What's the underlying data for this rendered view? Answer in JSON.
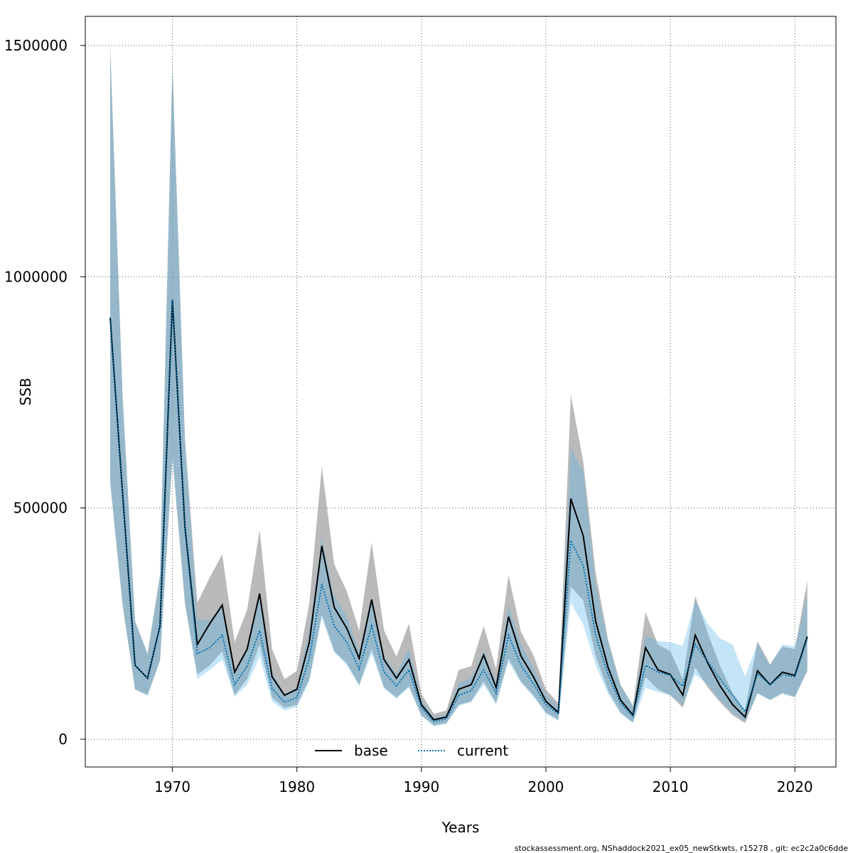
{
  "chart_data": {
    "type": "line",
    "xlabel": "Years",
    "ylabel": "SSB",
    "xlim": [
      1963,
      2023.3
    ],
    "ylim": [
      -60000,
      1563000
    ],
    "x_ticks": [
      1970,
      1980,
      1990,
      2000,
      2010,
      2020
    ],
    "y_ticks": [
      0,
      500000,
      1000000,
      1500000
    ],
    "x_tick_labels": [
      "1970",
      "1980",
      "1990",
      "2000",
      "2010",
      "2020"
    ],
    "y_tick_labels": [
      "0",
      "500000",
      "1000000",
      "1500000"
    ],
    "grid": true,
    "legend_placement": "bottom-center",
    "series": [
      {
        "name": "base",
        "color": "#000000",
        "line_style": "solid",
        "band_color": "#8c8c8c",
        "x": [
          1965,
          1966,
          1967,
          1968,
          1969,
          1970,
          1971,
          1972,
          1973,
          1974,
          1975,
          1976,
          1977,
          1978,
          1979,
          1980,
          1981,
          1982,
          1983,
          1984,
          1985,
          1986,
          1987,
          1988,
          1989,
          1990,
          1991,
          1992,
          1993,
          1994,
          1995,
          1996,
          1997,
          1998,
          1999,
          2000,
          2001,
          2002,
          2003,
          2004,
          2005,
          2006,
          2007,
          2008,
          2009,
          2010,
          2011,
          2012,
          2013,
          2014,
          2015,
          2016,
          2017,
          2018,
          2019,
          2020,
          2021
        ],
        "values": [
          912000,
          530000,
          160000,
          132000,
          245000,
          950000,
          460000,
          205000,
          250000,
          290000,
          145000,
          195000,
          315000,
          135000,
          95000,
          108000,
          210000,
          418000,
          285000,
          240000,
          175000,
          302000,
          172000,
          132000,
          172000,
          75000,
          42000,
          48000,
          108000,
          118000,
          182000,
          112000,
          265000,
          180000,
          135000,
          82000,
          58000,
          520000,
          440000,
          255000,
          155000,
          85000,
          52000,
          198000,
          150000,
          140000,
          95000,
          225000,
          165000,
          115000,
          75000,
          48000,
          148000,
          118000,
          145000,
          138000,
          222000
        ],
        "lower": [
          555000,
          290000,
          108000,
          95000,
          170000,
          610000,
          295000,
          140000,
          160000,
          190000,
          95000,
          130000,
          205000,
          90000,
          68000,
          75000,
          130000,
          270000,
          190000,
          165000,
          118000,
          195000,
          112000,
          90000,
          115000,
          52000,
          30000,
          35000,
          75000,
          82000,
          125000,
          78000,
          175000,
          125000,
          95000,
          58000,
          42000,
          330000,
          300000,
          180000,
          105000,
          58000,
          36000,
          135000,
          108000,
          95000,
          68000,
          155000,
          112000,
          80000,
          52000,
          35000,
          100000,
          85000,
          100000,
          92000,
          148000
        ],
        "upper": [
          1498000,
          740000,
          255000,
          185000,
          355000,
          1457000,
          650000,
          295000,
          350000,
          400000,
          210000,
          280000,
          452000,
          195000,
          130000,
          148000,
          295000,
          590000,
          378000,
          320000,
          235000,
          425000,
          235000,
          178000,
          250000,
          98000,
          55000,
          62000,
          150000,
          158000,
          245000,
          152000,
          355000,
          232000,
          182000,
          108000,
          78000,
          745000,
          600000,
          360000,
          215000,
          118000,
          72000,
          275000,
          205000,
          190000,
          130000,
          310000,
          230000,
          158000,
          100000,
          62000,
          212000,
          162000,
          200000,
          195000,
          342000
        ]
      },
      {
        "name": "current",
        "color": "#0072b2",
        "line_style": "dotted",
        "band_color": "#56b4e9",
        "x": [
          1965,
          1966,
          1967,
          1968,
          1969,
          1970,
          1971,
          1972,
          1973,
          1974,
          1975,
          1976,
          1977,
          1978,
          1979,
          1980,
          1981,
          1982,
          1983,
          1984,
          1985,
          1986,
          1987,
          1988,
          1989,
          1990,
          1991,
          1992,
          1993,
          1994,
          1995,
          1996,
          1997,
          1998,
          1999,
          2000,
          2001,
          2002,
          2003,
          2004,
          2005,
          2006,
          2007,
          2008,
          2009,
          2010,
          2011,
          2012,
          2013,
          2014,
          2015,
          2016,
          2017,
          2018,
          2019,
          2020,
          2021
        ],
        "values": [
          912000,
          530000,
          160000,
          132000,
          245000,
          950000,
          460000,
          185000,
          198000,
          225000,
          118000,
          158000,
          235000,
          110000,
          80000,
          90000,
          175000,
          335000,
          245000,
          210000,
          152000,
          245000,
          145000,
          115000,
          150000,
          68000,
          38000,
          44000,
          95000,
          105000,
          150000,
          100000,
          225000,
          160000,
          120000,
          75000,
          55000,
          430000,
          375000,
          225000,
          140000,
          78000,
          50000,
          160000,
          145000,
          138000,
          115000,
          205000,
          168000,
          130000,
          95000,
          60000,
          142000,
          118000,
          140000,
          135000,
          218000
        ],
        "lower": [
          555000,
          290000,
          108000,
          95000,
          170000,
          610000,
          295000,
          130000,
          150000,
          172000,
          92000,
          118000,
          178000,
          82000,
          62000,
          70000,
          125000,
          262000,
          188000,
          160000,
          115000,
          185000,
          110000,
          88000,
          112000,
          50000,
          28000,
          33000,
          72000,
          80000,
          118000,
          75000,
          168000,
          122000,
          92000,
          55000,
          40000,
          295000,
          248000,
          160000,
          98000,
          55000,
          35000,
          112000,
          102000,
          95000,
          75000,
          140000,
          118000,
          85000,
          58000,
          38000,
          98000,
          85000,
          98000,
          90000,
          148000
        ],
        "upper": [
          1498000,
          740000,
          255000,
          185000,
          355000,
          1457000,
          650000,
          260000,
          258000,
          292000,
          148000,
          200000,
          315000,
          145000,
          98000,
          112000,
          238000,
          435000,
          310000,
          265000,
          190000,
          310000,
          180000,
          142000,
          195000,
          85000,
          48000,
          55000,
          122000,
          132000,
          190000,
          125000,
          290000,
          205000,
          155000,
          95000,
          72000,
          630000,
          578000,
          335000,
          210000,
          115000,
          72000,
          225000,
          212000,
          210000,
          202000,
          300000,
          250000,
          218000,
          205000,
          135000,
          208000,
          160000,
          205000,
          200000,
          308000
        ]
      }
    ],
    "footer": "stockassessment.org, NShaddock2021_ex05_newStkwts, r15278 , git: ec2c2a0c6dde"
  }
}
